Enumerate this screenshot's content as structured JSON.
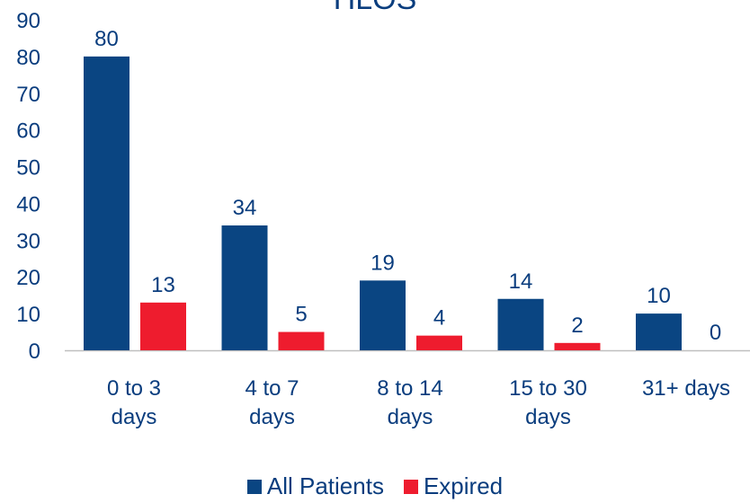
{
  "chart_data": {
    "type": "bar",
    "title": "HLOS",
    "categories": [
      [
        "0 to 3",
        "days"
      ],
      [
        "4 to 7",
        "days"
      ],
      [
        "8 to 14",
        "days"
      ],
      [
        "15 to 30",
        "days"
      ],
      [
        "31+ days"
      ]
    ],
    "series": [
      {
        "name": "All Patients",
        "color": "#0a4582",
        "values": [
          80,
          34,
          19,
          14,
          10
        ]
      },
      {
        "name": "Expired",
        "color": "#ee1c2e",
        "values": [
          13,
          5,
          4,
          2,
          0
        ]
      }
    ],
    "ylim": [
      0,
      90
    ],
    "yticks": [
      0,
      10,
      20,
      30,
      40,
      50,
      60,
      70,
      80,
      90
    ],
    "grid": false,
    "legend": "bottom",
    "text_color": "#0a3d7e"
  }
}
